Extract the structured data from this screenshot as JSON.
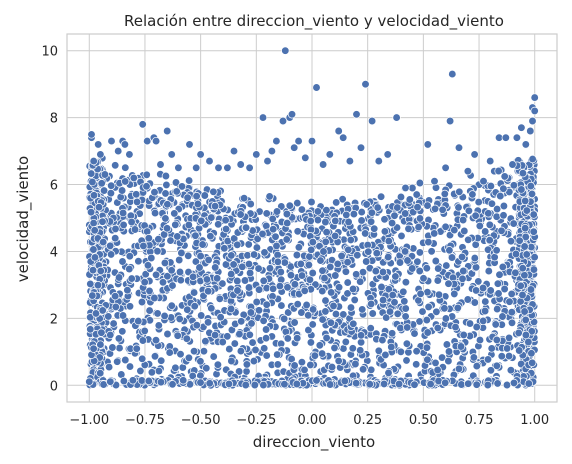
{
  "chart_data": {
    "type": "scatter",
    "title": "Relación entre direccion_viento y velocidad_viento",
    "xlabel": "direccion_viento",
    "ylabel": "velocidad_viento",
    "xlim": [
      -1.1,
      1.1
    ],
    "ylim": [
      -0.5,
      10.5
    ],
    "xticks": [
      -1.0,
      -0.75,
      -0.5,
      -0.25,
      0.0,
      0.25,
      0.5,
      0.75,
      1.0
    ],
    "xtick_labels": [
      "−1.00",
      "−0.75",
      "−0.50",
      "−0.25",
      "0.00",
      "0.25",
      "0.50",
      "0.75",
      "1.00"
    ],
    "yticks": [
      0,
      2,
      4,
      6,
      8,
      10
    ],
    "ytick_labels": [
      "0",
      "2",
      "4",
      "6",
      "8",
      "10"
    ],
    "grid": true,
    "marker_color": "#4c72b0",
    "points_outline": [
      [
        -0.99,
        7.4
      ],
      [
        -0.99,
        7.5
      ],
      [
        -0.98,
        6.7
      ],
      [
        -0.96,
        7.2
      ],
      [
        -0.95,
        6.9
      ],
      [
        -0.93,
        6.3
      ],
      [
        -0.9,
        7.3
      ],
      [
        -0.87,
        7.0
      ],
      [
        -0.85,
        7.3
      ],
      [
        -0.84,
        7.2
      ],
      [
        -0.82,
        6.9
      ],
      [
        -0.8,
        6.2
      ],
      [
        -0.76,
        7.8
      ],
      [
        -0.74,
        7.3
      ],
      [
        -0.71,
        7.4
      ],
      [
        -0.7,
        7.3
      ],
      [
        -0.68,
        6.6
      ],
      [
        -0.65,
        7.6
      ],
      [
        -0.63,
        6.9
      ],
      [
        -0.6,
        6.5
      ],
      [
        -0.55,
        7.2
      ],
      [
        -0.52,
        6.5
      ],
      [
        -0.5,
        6.9
      ],
      [
        -0.46,
        6.7
      ],
      [
        -0.42,
        6.5
      ],
      [
        -0.38,
        6.5
      ],
      [
        -0.35,
        7.0
      ],
      [
        -0.32,
        6.6
      ],
      [
        -0.28,
        6.5
      ],
      [
        -0.25,
        6.9
      ],
      [
        -0.22,
        8.0
      ],
      [
        -0.2,
        6.7
      ],
      [
        -0.18,
        7.0
      ],
      [
        -0.16,
        7.3
      ],
      [
        -0.13,
        7.9
      ],
      [
        -0.12,
        10.0
      ],
      [
        -0.1,
        8.0
      ],
      [
        -0.09,
        8.1
      ],
      [
        -0.08,
        7.1
      ],
      [
        -0.06,
        7.3
      ],
      [
        -0.03,
        6.8
      ],
      [
        0.0,
        7.3
      ],
      [
        0.02,
        8.9
      ],
      [
        0.05,
        6.6
      ],
      [
        0.08,
        6.9
      ],
      [
        0.12,
        7.6
      ],
      [
        0.14,
        7.4
      ],
      [
        0.17,
        6.7
      ],
      [
        0.2,
        8.1
      ],
      [
        0.22,
        7.1
      ],
      [
        0.24,
        9.0
      ],
      [
        0.27,
        7.9
      ],
      [
        0.3,
        6.7
      ],
      [
        0.34,
        6.9
      ],
      [
        0.38,
        8.0
      ],
      [
        0.42,
        5.9
      ],
      [
        0.47,
        5.7
      ],
      [
        0.52,
        7.2
      ],
      [
        0.55,
        6.1
      ],
      [
        0.6,
        6.5
      ],
      [
        0.62,
        7.9
      ],
      [
        0.63,
        9.3
      ],
      [
        0.66,
        7.1
      ],
      [
        0.7,
        6.4
      ],
      [
        0.73,
        6.9
      ],
      [
        0.77,
        6.1
      ],
      [
        0.8,
        6.7
      ],
      [
        0.84,
        7.4
      ],
      [
        0.87,
        7.4
      ],
      [
        0.9,
        6.6
      ],
      [
        0.92,
        7.4
      ],
      [
        0.94,
        7.7
      ],
      [
        0.96,
        7.2
      ],
      [
        0.98,
        7.6
      ],
      [
        0.99,
        8.3
      ],
      [
        1.0,
        8.6
      ],
      [
        1.0,
        8.2
      ],
      [
        0.99,
        7.9
      ]
    ]
  }
}
